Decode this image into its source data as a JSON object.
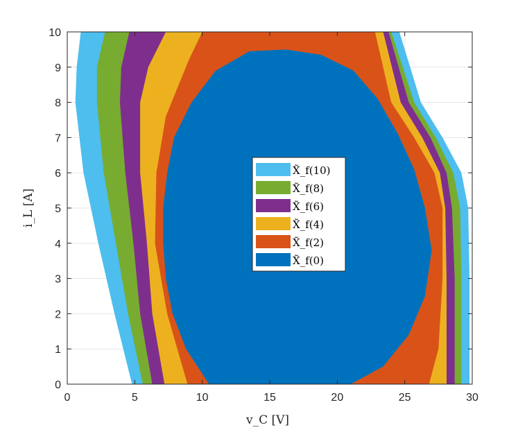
{
  "chart_data": {
    "type": "area",
    "title": "",
    "xlabel": "v_C [V]",
    "ylabel": "i_L [A]",
    "xlim": [
      0,
      30
    ],
    "ylim": [
      0,
      10
    ],
    "xticks": [
      0,
      5,
      10,
      15,
      20,
      25,
      30
    ],
    "yticks": [
      0,
      1,
      2,
      3,
      4,
      5,
      6,
      7,
      8,
      9,
      10
    ],
    "grid": true,
    "legend_position": "center",
    "series": [
      {
        "name": "X̃_f(10)",
        "color": "#4DBEEE",
        "points": [
          [
            4.8,
            0
          ],
          [
            3.5,
            2
          ],
          [
            2.3,
            4
          ],
          [
            1.2,
            6
          ],
          [
            0.6,
            8
          ],
          [
            0.7,
            9
          ],
          [
            1.0,
            10
          ],
          [
            24.6,
            10
          ],
          [
            26.2,
            8
          ],
          [
            27.8,
            7
          ],
          [
            29.2,
            6
          ],
          [
            29.7,
            5
          ],
          [
            29.8,
            3
          ],
          [
            29.8,
            0
          ]
        ]
      },
      {
        "name": "X̃_f(8)",
        "color": "#77AC30",
        "points": [
          [
            5.6,
            0
          ],
          [
            4.5,
            2
          ],
          [
            3.6,
            4
          ],
          [
            2.7,
            6
          ],
          [
            2.2,
            8
          ],
          [
            2.2,
            9
          ],
          [
            2.8,
            10
          ],
          [
            24.0,
            10
          ],
          [
            25.7,
            8
          ],
          [
            27.3,
            7
          ],
          [
            28.6,
            6
          ],
          [
            29.1,
            5
          ],
          [
            29.2,
            3
          ],
          [
            29.2,
            0
          ]
        ]
      },
      {
        "name": "X̃_f(6)",
        "color": "#7E2F8E",
        "points": [
          [
            6.3,
            0
          ],
          [
            5.4,
            2
          ],
          [
            4.9,
            4
          ],
          [
            4.3,
            6
          ],
          [
            3.9,
            8
          ],
          [
            4.0,
            9
          ],
          [
            4.6,
            10
          ],
          [
            23.8,
            10
          ],
          [
            25.3,
            8
          ],
          [
            26.9,
            7
          ],
          [
            28.1,
            6
          ],
          [
            28.5,
            5
          ],
          [
            28.7,
            3
          ],
          [
            28.7,
            0
          ]
        ]
      },
      {
        "name": "X̃_f(4)",
        "color": "#EDB120",
        "points": [
          [
            7.2,
            0
          ],
          [
            6.3,
            2
          ],
          [
            5.9,
            4
          ],
          [
            5.4,
            6
          ],
          [
            5.4,
            8
          ],
          [
            6.0,
            9
          ],
          [
            7.3,
            10
          ],
          [
            23.4,
            10
          ],
          [
            24.7,
            8
          ],
          [
            26.3,
            7
          ],
          [
            27.6,
            6
          ],
          [
            28.0,
            5
          ],
          [
            28.1,
            3
          ],
          [
            28.1,
            0
          ]
        ]
      },
      {
        "name": "X̃_f(2)",
        "color": "#D95319",
        "points": [
          [
            8.9,
            0
          ],
          [
            7.4,
            2
          ],
          [
            6.5,
            4
          ],
          [
            6.6,
            6
          ],
          [
            7.3,
            7.6
          ],
          [
            9.0,
            9.2
          ],
          [
            10.0,
            10
          ],
          [
            22.8,
            10
          ],
          [
            24.0,
            8
          ],
          [
            25.7,
            7
          ],
          [
            27.2,
            6
          ],
          [
            27.8,
            5
          ],
          [
            27.8,
            3
          ],
          [
            27.5,
            1
          ],
          [
            26.8,
            0
          ]
        ]
      },
      {
        "name": "X̃_f(0)",
        "color": "#0072BD",
        "points": [
          [
            10.5,
            0
          ],
          [
            8.8,
            1
          ],
          [
            7.8,
            2
          ],
          [
            7.3,
            3
          ],
          [
            7.1,
            4
          ],
          [
            7.1,
            5
          ],
          [
            7.4,
            6
          ],
          [
            7.9,
            7
          ],
          [
            9.2,
            8
          ],
          [
            11.0,
            8.9
          ],
          [
            13.5,
            9.45
          ],
          [
            16.2,
            9.5
          ],
          [
            18.8,
            9.35
          ],
          [
            21.2,
            8.9
          ],
          [
            23.0,
            8.1
          ],
          [
            24.5,
            7.1
          ],
          [
            25.7,
            6.1
          ],
          [
            26.5,
            5
          ],
          [
            27.0,
            3.8
          ],
          [
            26.5,
            2.5
          ],
          [
            25.3,
            1.4
          ],
          [
            23.4,
            0.5
          ],
          [
            21.0,
            0
          ]
        ]
      }
    ]
  }
}
